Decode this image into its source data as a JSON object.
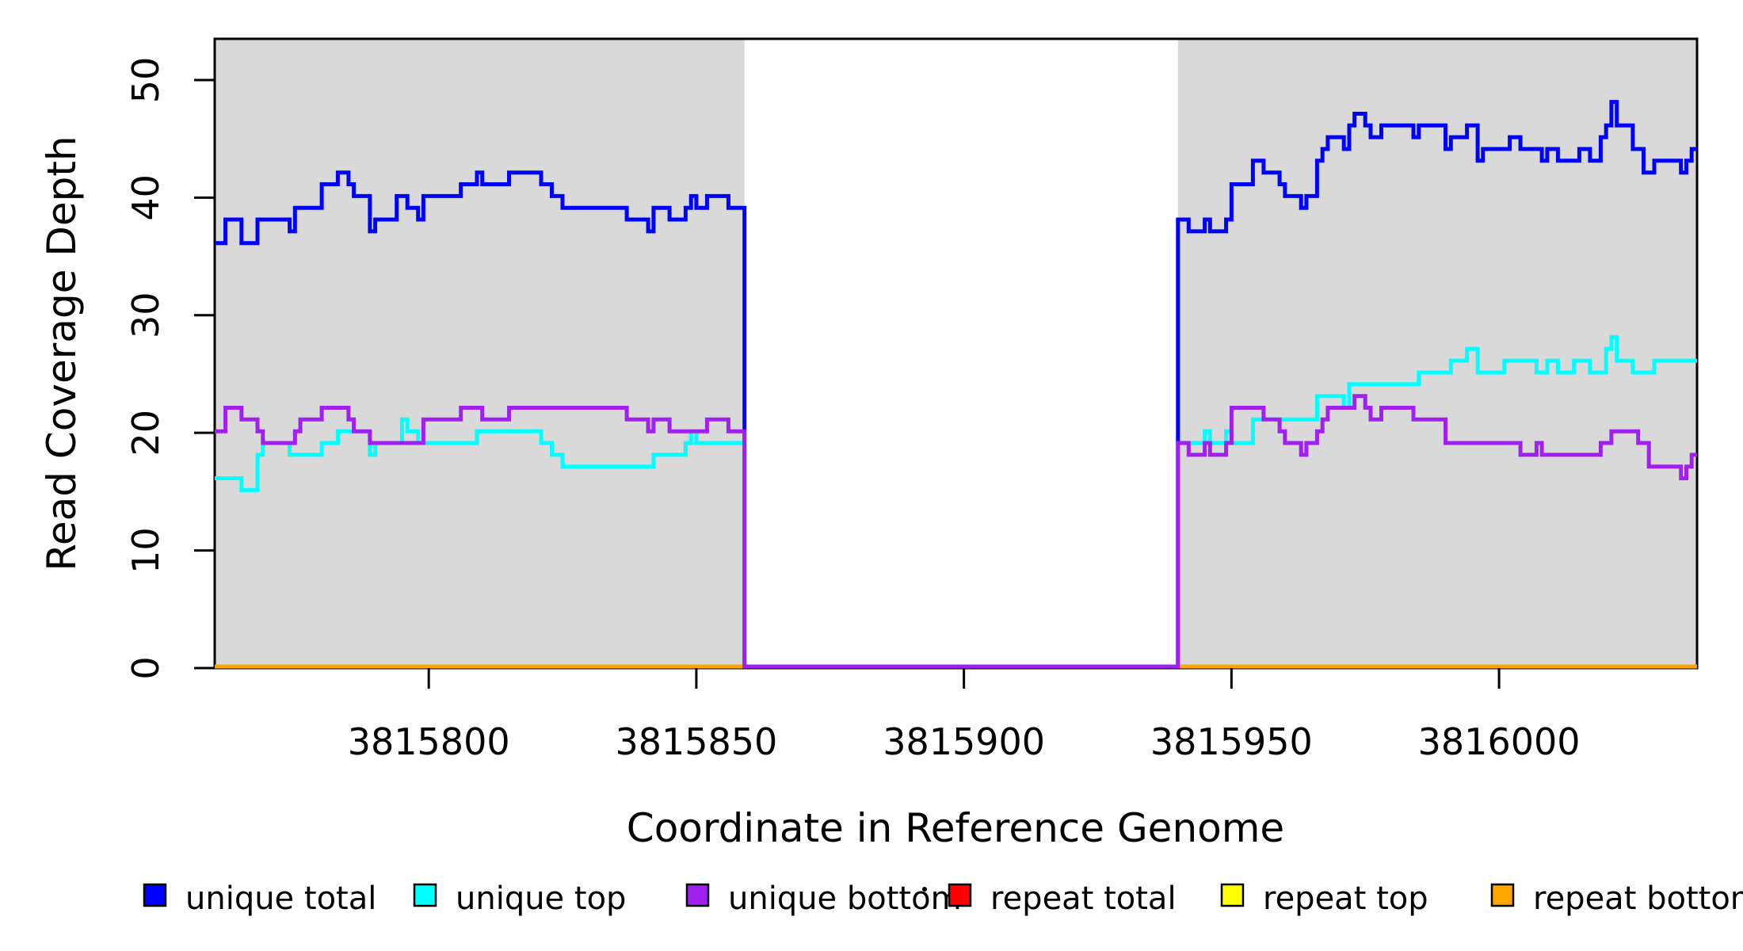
{
  "chart": {
    "xlabel": "Coordinate in Reference Genome",
    "ylabel": "Read Coverage Depth"
  },
  "colors": {
    "unique_total": "#0000FF",
    "unique_top": "#00FFFF",
    "unique_bottom": "#A020F0",
    "repeat_total": "#FF0000",
    "repeat_top": "#FFFF00",
    "repeat_bottom": "#FFA500",
    "shaded_region": "#D9D9D9",
    "axis": "#000000"
  },
  "legend": {
    "items": [
      {
        "label": "unique total",
        "color": "#0000FF"
      },
      {
        "label": "unique top",
        "color": "#00FFFF"
      },
      {
        "label": "unique bottom",
        "color": "#A020F0"
      },
      {
        "label": "repeat total",
        "color": "#FF0000"
      },
      {
        "label": "repeat top",
        "color": "#FFFF00"
      },
      {
        "label": "repeat bottom",
        "color": "#FFA500"
      }
    ],
    "stray_dot": true
  },
  "chart_data": {
    "type": "line",
    "step": true,
    "grid": false,
    "legend_position": "bottom",
    "xlabel": "Coordinate in Reference Genome",
    "ylabel": "Read Coverage Depth",
    "xlim": [
      3815760,
      3816037
    ],
    "ylim": [
      0,
      53.5
    ],
    "x_ticks": [
      {
        "value": 3815800,
        "label": "3815800"
      },
      {
        "value": 3815850,
        "label": "3815850"
      },
      {
        "value": 3815900,
        "label": "3815900"
      },
      {
        "value": 3815950,
        "label": "3815950"
      },
      {
        "value": 3816000,
        "label": "3816000"
      }
    ],
    "y_ticks": [
      {
        "value": 0,
        "label": "0"
      },
      {
        "value": 10,
        "label": "10"
      },
      {
        "value": 20,
        "label": "20"
      },
      {
        "value": 30,
        "label": "30"
      },
      {
        "value": 40,
        "label": "40"
      },
      {
        "value": 50,
        "label": "50"
      }
    ],
    "shaded_regions": [
      {
        "x0": 3815760,
        "x1": 3815859
      },
      {
        "x0": 3815940,
        "x1": 3816037
      }
    ],
    "gap_region": {
      "x0": 3815859,
      "x1": 3815940,
      "note": "unique coverage drops to 0; no repeat lines drawn"
    },
    "series": [
      {
        "name": "repeat total",
        "color": "#FF0000",
        "paths": [
          {
            "points": [
              [
                3815760,
                0
              ]
            ],
            "end": 3815859
          },
          {
            "points": [
              [
                3815940,
                0
              ]
            ],
            "end": 3816037
          }
        ]
      },
      {
        "name": "repeat top",
        "color": "#FFFF00",
        "paths": [
          {
            "points": [
              [
                3815760,
                0
              ]
            ],
            "end": 3815859
          },
          {
            "points": [
              [
                3815940,
                0
              ]
            ],
            "end": 3816037
          }
        ]
      },
      {
        "name": "repeat bottom",
        "color": "#FFA500",
        "paths": [
          {
            "points": [
              [
                3815760,
                0
              ]
            ],
            "end": 3815859
          },
          {
            "points": [
              [
                3815940,
                0
              ]
            ],
            "end": 3816037
          }
        ]
      },
      {
        "name": "unique total",
        "color": "#0000FF",
        "paths": [
          {
            "points": [
              [
                3815760,
                36
              ],
              [
                3815762,
                38
              ],
              [
                3815765,
                36
              ],
              [
                3815768,
                38
              ],
              [
                3815774,
                37
              ],
              [
                3815775,
                39
              ],
              [
                3815780,
                41
              ],
              [
                3815783,
                42
              ],
              [
                3815785,
                41
              ],
              [
                3815786,
                40
              ],
              [
                3815789,
                37
              ],
              [
                3815790,
                38
              ],
              [
                3815794,
                40
              ],
              [
                3815796,
                39
              ],
              [
                3815798,
                38
              ],
              [
                3815799,
                40
              ],
              [
                3815806,
                41
              ],
              [
                3815809,
                42
              ],
              [
                3815810,
                41
              ],
              [
                3815815,
                42
              ],
              [
                3815821,
                41
              ],
              [
                3815823,
                40
              ],
              [
                3815825,
                39
              ],
              [
                3815837,
                38
              ],
              [
                3815841,
                37
              ],
              [
                3815842,
                39
              ],
              [
                3815845,
                38
              ],
              [
                3815848,
                39
              ],
              [
                3815849,
                40
              ],
              [
                3815850,
                39
              ],
              [
                3815852,
                40
              ],
              [
                3815856,
                39
              ],
              [
                3815859,
                0
              ],
              [
                3815940,
                38
              ],
              [
                3815942,
                37
              ],
              [
                3815945,
                38
              ],
              [
                3815946,
                37
              ],
              [
                3815949,
                38
              ],
              [
                3815950,
                41
              ],
              [
                3815954,
                43
              ],
              [
                3815956,
                42
              ],
              [
                3815959,
                41
              ],
              [
                3815960,
                40
              ],
              [
                3815963,
                39
              ],
              [
                3815964,
                40
              ],
              [
                3815966,
                43
              ],
              [
                3815967,
                44
              ],
              [
                3815968,
                45
              ],
              [
                3815971,
                44
              ],
              [
                3815972,
                46
              ],
              [
                3815973,
                47
              ],
              [
                3815975,
                46
              ],
              [
                3815976,
                45
              ],
              [
                3815978,
                46
              ],
              [
                3815984,
                45
              ],
              [
                3815985,
                46
              ],
              [
                3815990,
                44
              ],
              [
                3815991,
                45
              ],
              [
                3815994,
                46
              ],
              [
                3815996,
                43
              ],
              [
                3815997,
                44
              ],
              [
                3816002,
                45
              ],
              [
                3816004,
                44
              ],
              [
                3816008,
                43
              ],
              [
                3816009,
                44
              ],
              [
                3816011,
                43
              ],
              [
                3816015,
                44
              ],
              [
                3816017,
                43
              ],
              [
                3816019,
                45
              ],
              [
                3816020,
                46
              ],
              [
                3816021,
                48
              ],
              [
                3816022,
                46
              ],
              [
                3816025,
                44
              ],
              [
                3816027,
                42
              ],
              [
                3816029,
                43
              ],
              [
                3816034,
                42
              ],
              [
                3816035,
                43
              ],
              [
                3816036,
                44
              ]
            ],
            "end": 3816037
          }
        ]
      },
      {
        "name": "unique top",
        "color": "#00FFFF",
        "paths": [
          {
            "points": [
              [
                3815760,
                16
              ],
              [
                3815765,
                15
              ],
              [
                3815768,
                18
              ],
              [
                3815769,
                19
              ],
              [
                3815774,
                18
              ],
              [
                3815780,
                19
              ],
              [
                3815783,
                20
              ],
              [
                3815789,
                18
              ],
              [
                3815790,
                19
              ],
              [
                3815795,
                21
              ],
              [
                3815796,
                20
              ],
              [
                3815798,
                19
              ],
              [
                3815809,
                20
              ],
              [
                3815821,
                19
              ],
              [
                3815823,
                18
              ],
              [
                3815825,
                17
              ],
              [
                3815842,
                18
              ],
              [
                3815848,
                19
              ],
              [
                3815849,
                20
              ],
              [
                3815850,
                19
              ],
              [
                3815859,
                0
              ],
              [
                3815940,
                19
              ],
              [
                3815945,
                20
              ],
              [
                3815946,
                19
              ],
              [
                3815949,
                20
              ],
              [
                3815950,
                19
              ],
              [
                3815954,
                21
              ],
              [
                3815966,
                23
              ],
              [
                3815971,
                22
              ],
              [
                3815972,
                24
              ],
              [
                3815985,
                25
              ],
              [
                3815991,
                26
              ],
              [
                3815994,
                27
              ],
              [
                3815996,
                25
              ],
              [
                3816001,
                26
              ],
              [
                3816007,
                25
              ],
              [
                3816009,
                26
              ],
              [
                3816011,
                25
              ],
              [
                3816014,
                26
              ],
              [
                3816017,
                25
              ],
              [
                3816020,
                27
              ],
              [
                3816021,
                28
              ],
              [
                3816022,
                26
              ],
              [
                3816025,
                25
              ],
              [
                3816029,
                26
              ]
            ],
            "end": 3816037
          }
        ]
      },
      {
        "name": "unique bottom",
        "color": "#A020F0",
        "paths": [
          {
            "points": [
              [
                3815760,
                20
              ],
              [
                3815762,
                22
              ],
              [
                3815765,
                21
              ],
              [
                3815768,
                20
              ],
              [
                3815769,
                19
              ],
              [
                3815775,
                20
              ],
              [
                3815776,
                21
              ],
              [
                3815780,
                22
              ],
              [
                3815785,
                21
              ],
              [
                3815786,
                20
              ],
              [
                3815789,
                19
              ],
              [
                3815799,
                21
              ],
              [
                3815806,
                22
              ],
              [
                3815810,
                21
              ],
              [
                3815815,
                22
              ],
              [
                3815837,
                21
              ],
              [
                3815841,
                20
              ],
              [
                3815842,
                21
              ],
              [
                3815845,
                20
              ],
              [
                3815852,
                21
              ],
              [
                3815856,
                20
              ],
              [
                3815859,
                0
              ],
              [
                3815940,
                19
              ],
              [
                3815942,
                18
              ],
              [
                3815945,
                19
              ],
              [
                3815946,
                18
              ],
              [
                3815949,
                19
              ],
              [
                3815950,
                22
              ],
              [
                3815956,
                21
              ],
              [
                3815959,
                20
              ],
              [
                3815960,
                19
              ],
              [
                3815963,
                18
              ],
              [
                3815964,
                19
              ],
              [
                3815966,
                20
              ],
              [
                3815967,
                21
              ],
              [
                3815968,
                22
              ],
              [
                3815973,
                23
              ],
              [
                3815975,
                22
              ],
              [
                3815976,
                21
              ],
              [
                3815978,
                22
              ],
              [
                3815984,
                21
              ],
              [
                3815990,
                19
              ],
              [
                3816004,
                18
              ],
              [
                3816007,
                19
              ],
              [
                3816008,
                18
              ],
              [
                3816019,
                19
              ],
              [
                3816021,
                20
              ],
              [
                3816026,
                19
              ],
              [
                3816028,
                17
              ],
              [
                3816034,
                16
              ],
              [
                3816035,
                17
              ],
              [
                3816036,
                18
              ]
            ],
            "end": 3816037
          }
        ]
      }
    ]
  }
}
